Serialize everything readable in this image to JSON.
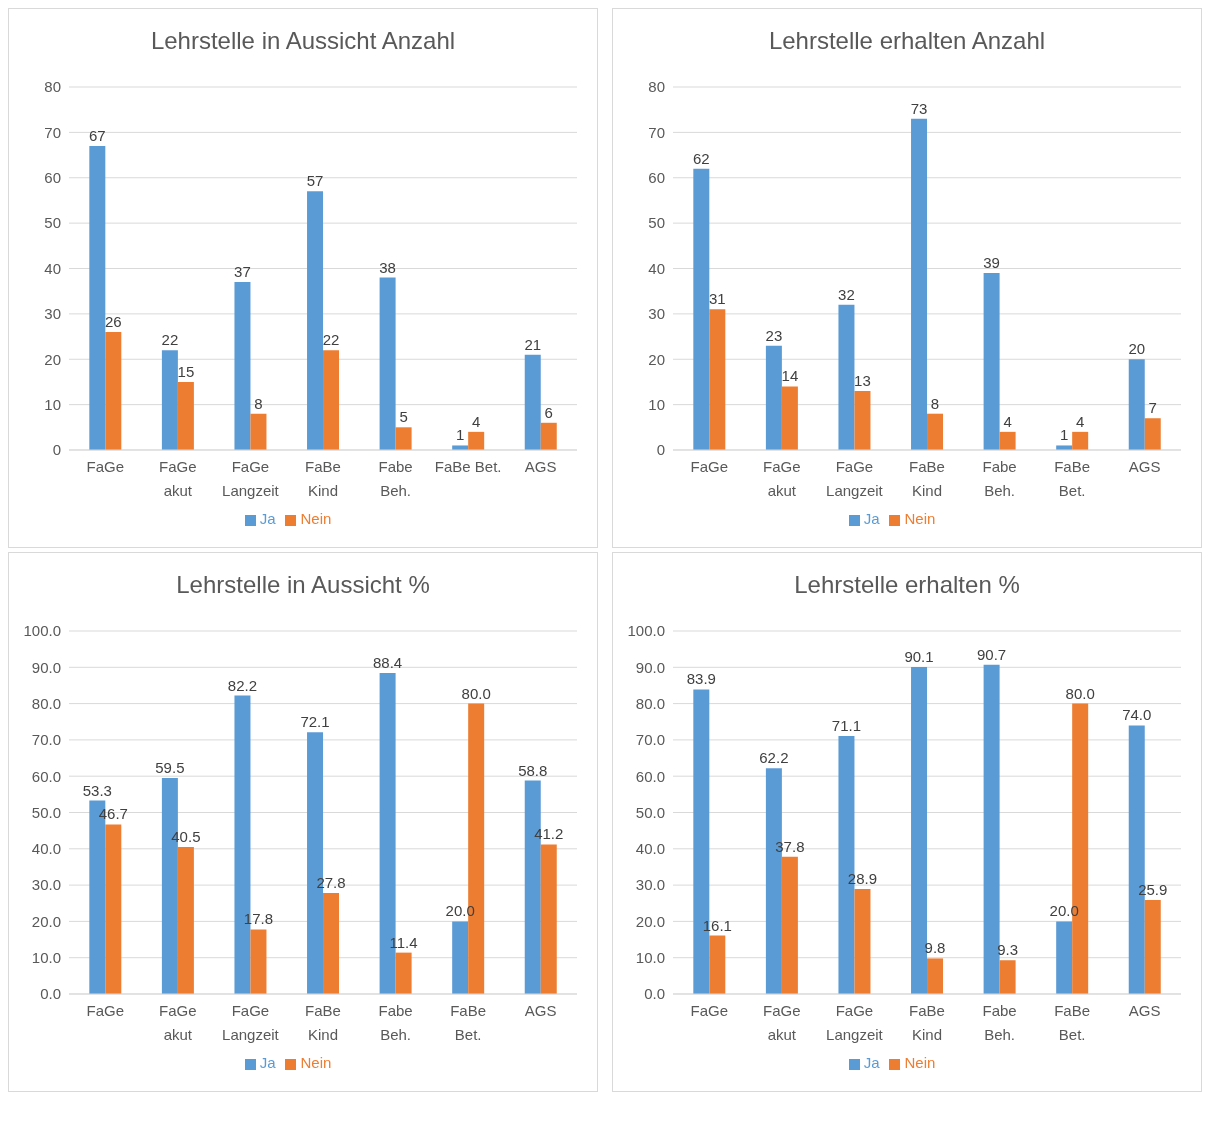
{
  "chart_data": [
    {
      "type": "bar",
      "title": "Lehrstelle in Aussicht Anzahl",
      "categories": [
        "FaGe",
        "FaGe\nakut",
        "FaGe\nLangzeit",
        "FaBe\nKind",
        "Fabe\nBeh.",
        "FaBe Bet.",
        "AGS"
      ],
      "series": [
        {
          "name": "Ja",
          "color": "#5b9bd5",
          "values": [
            67,
            22,
            37,
            57,
            38,
            1,
            21
          ]
        },
        {
          "name": "Nein",
          "color": "#ed7d31",
          "values": [
            26,
            15,
            8,
            22,
            5,
            4,
            6
          ]
        }
      ],
      "ylim": [
        0,
        80
      ],
      "yticks": [
        0,
        10,
        20,
        30,
        40,
        50,
        60,
        70,
        80
      ],
      "grid": "y",
      "legend": "bottom",
      "data_labels": true
    },
    {
      "type": "bar",
      "title": "Lehrstelle erhalten Anzahl",
      "categories": [
        "FaGe",
        "FaGe\nakut",
        "FaGe\nLangzeit",
        "FaBe\nKind",
        "Fabe\nBeh.",
        "FaBe\nBet.",
        "AGS"
      ],
      "series": [
        {
          "name": "Ja",
          "color": "#5b9bd5",
          "values": [
            62,
            23,
            32,
            73,
            39,
            1,
            20
          ]
        },
        {
          "name": "Nein",
          "color": "#ed7d31",
          "values": [
            31,
            14,
            13,
            8,
            4,
            4,
            7
          ]
        }
      ],
      "ylim": [
        0,
        80
      ],
      "yticks": [
        0,
        10,
        20,
        30,
        40,
        50,
        60,
        70,
        80
      ],
      "grid": "y",
      "legend": "bottom",
      "data_labels": true
    },
    {
      "type": "bar",
      "title": "Lehrstelle in Aussicht %",
      "categories": [
        "FaGe",
        "FaGe\nakut",
        "FaGe\nLangzeit",
        "FaBe\nKind",
        "Fabe\nBeh.",
        "FaBe\nBet.",
        "AGS"
      ],
      "series": [
        {
          "name": "Ja",
          "color": "#5b9bd5",
          "values": [
            53.3,
            59.5,
            82.2,
            72.1,
            88.4,
            20.0,
            58.8
          ],
          "value_labels": [
            "53.3",
            "59.5",
            "82.2",
            "72.1",
            "88.4",
            "20.0",
            "58.8"
          ]
        },
        {
          "name": "Nein",
          "color": "#ed7d31",
          "values": [
            46.7,
            40.5,
            17.8,
            27.8,
            11.4,
            80.0,
            41.2
          ],
          "value_labels": [
            "46.7",
            "40.5",
            "17.8",
            "27.8",
            "11.4",
            "80.0",
            "41.2"
          ]
        }
      ],
      "ylim": [
        0,
        100
      ],
      "yticks": [
        {
          "value": 0,
          "label": "0.0"
        },
        {
          "value": 10,
          "label": "10.0"
        },
        {
          "value": 20,
          "label": "20.0"
        },
        {
          "value": 30,
          "label": "30.0"
        },
        {
          "value": 40,
          "label": "40.0"
        },
        {
          "value": 50,
          "label": "50.0"
        },
        {
          "value": 60,
          "label": "60.0"
        },
        {
          "value": 70,
          "label": "70.0"
        },
        {
          "value": 80,
          "label": "80.0"
        },
        {
          "value": 90,
          "label": "90.0"
        },
        {
          "value": 100,
          "label": "100.0"
        }
      ],
      "grid": "y",
      "legend": "bottom"
    },
    {
      "type": "bar",
      "title": "Lehrstelle erhalten %",
      "categories": [
        "FaGe",
        "FaGe\nakut",
        "FaGe\nLangzeit",
        "FaBe\nKind",
        "Fabe\nBeh.",
        "FaBe\nBet.",
        "AGS"
      ],
      "series": [
        {
          "name": "Ja",
          "color": "#5b9bd5",
          "values": [
            83.9,
            62.2,
            71.1,
            90.1,
            90.7,
            20.0,
            74.0
          ],
          "value_labels": [
            "83.9",
            "62.2",
            "71.1",
            "90.1",
            "90.7",
            "20.0",
            "74.0"
          ]
        },
        {
          "name": "Nein",
          "color": "#ed7d31",
          "values": [
            16.1,
            37.8,
            28.9,
            9.8,
            9.3,
            80.0,
            25.9
          ],
          "value_labels": [
            "16.1",
            "37.8",
            "28.9",
            "9.8",
            "9.3",
            "80.0",
            "25.9"
          ]
        }
      ],
      "ylim": [
        0,
        100
      ],
      "yticks": [
        {
          "value": 0,
          "label": "0.0"
        },
        {
          "value": 10,
          "label": "10.0"
        },
        {
          "value": 20,
          "label": "20.0"
        },
        {
          "value": 30,
          "label": "30.0"
        },
        {
          "value": 40,
          "label": "40.0"
        },
        {
          "value": 50,
          "label": "50.0"
        },
        {
          "value": 60,
          "label": "60.0"
        },
        {
          "value": 70,
          "label": "70.0"
        },
        {
          "value": 80,
          "label": "80.0"
        },
        {
          "value": 90,
          "label": "90.0"
        },
        {
          "value": 100,
          "label": "100.0"
        }
      ],
      "grid": "y",
      "legend": "bottom"
    }
  ]
}
